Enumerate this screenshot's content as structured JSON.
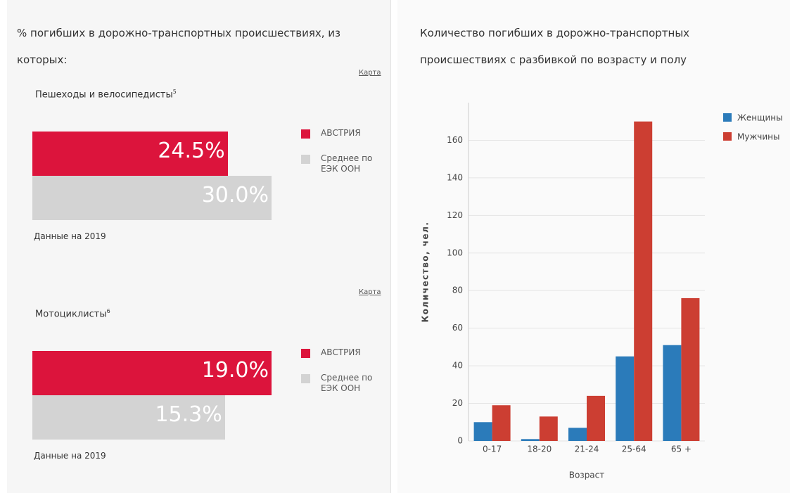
{
  "left_panel": {
    "title": "% погибших в дорожно-транспортных происшествиях, из которых:"
  },
  "right_panel": {
    "title": "Количество погибших в дорожно-транспортных происшествиях с разбивкой по возрасту и полу"
  },
  "chart_data": [
    {
      "type": "hbar",
      "title": "Пешеходы и велосипедисты",
      "footnote": "5",
      "link": "Карта",
      "note": "Данные на 2019",
      "series": [
        {
          "name": "АВСТРИЯ",
          "color": "#dc143c",
          "values": [
            24.5
          ],
          "value_labels": [
            "24.5%"
          ]
        },
        {
          "name": "Среднее по ЕЭК ООН",
          "color": "#d3d3d3",
          "values": [
            30.0
          ],
          "value_labels": [
            "30.0%"
          ]
        }
      ]
    },
    {
      "type": "hbar",
      "title": "Мотоциклисты",
      "footnote": "6",
      "link": "Карта",
      "note": "Данные на 2019",
      "series": [
        {
          "name": "АВСТРИЯ",
          "color": "#dc143c",
          "values": [
            19.0
          ],
          "value_labels": [
            "19.0%"
          ]
        },
        {
          "name": "Среднее по ЕЭК ООН",
          "color": "#d3d3d3",
          "values": [
            15.3
          ],
          "value_labels": [
            "15.3%"
          ]
        }
      ]
    },
    {
      "type": "bar",
      "x_label": "Возраст",
      "y_label": "Количество, чел.",
      "categories": [
        "0-17",
        "18-20",
        "21-24",
        "25-64",
        "65 +"
      ],
      "series": [
        {
          "name": "Женщины",
          "color": "#2b7bba",
          "values": [
            10,
            1,
            7,
            45,
            51
          ]
        },
        {
          "name": "Мужчины",
          "color": "#cc3e32",
          "values": [
            19,
            13,
            24,
            170,
            76
          ]
        }
      ],
      "ylim": [
        0,
        180
      ],
      "yticks": [
        0,
        20,
        40,
        60,
        80,
        100,
        120,
        140,
        160
      ],
      "grid": true
    }
  ]
}
